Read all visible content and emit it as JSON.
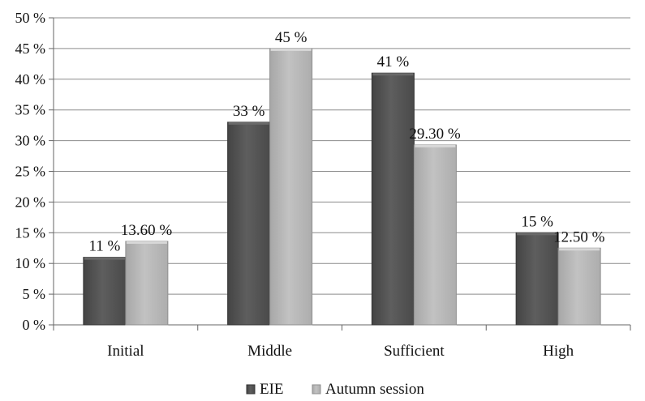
{
  "chart_data": {
    "type": "bar",
    "title": "",
    "xlabel": "",
    "ylabel": "",
    "categories": [
      "Initial",
      "Middle",
      "Sufficient",
      "High"
    ],
    "series": [
      {
        "name": "EIE",
        "values": [
          11,
          33,
          41,
          15
        ],
        "labels": [
          "11 %",
          "33 %",
          "41 %",
          "15 %"
        ],
        "color": "#555555"
      },
      {
        "name": "Autumn session",
        "values": [
          13.6,
          45,
          29.3,
          12.5
        ],
        "labels": [
          "13.60 %",
          "45 %",
          "29.30 %",
          "12.50 %"
        ],
        "color": "#b3b3b3"
      }
    ],
    "ylim": [
      0,
      50
    ],
    "ytick_values": [
      0,
      5,
      10,
      15,
      20,
      25,
      30,
      35,
      40,
      45,
      50
    ],
    "ytick_labels": [
      "0 %",
      "5 %",
      "10 %",
      "15 %",
      "20 %",
      "25 %",
      "30 %",
      "35 %",
      "40 %",
      "45 %",
      "50 %"
    ],
    "grid": true,
    "legend_position": "bottom"
  }
}
